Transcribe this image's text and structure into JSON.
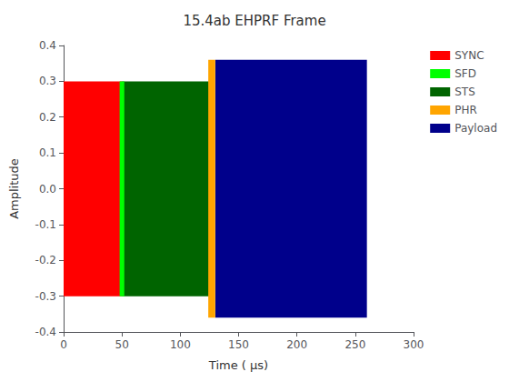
{
  "chart_data": {
    "type": "span",
    "title": "15.4ab EHPRF Frame",
    "xlabel": "Time ( μs)",
    "ylabel": "Amplitude",
    "xlim": [
      0,
      300
    ],
    "ylim": [
      -0.4,
      0.4
    ],
    "xticks": [
      0,
      50,
      100,
      150,
      200,
      250,
      300
    ],
    "yticks": [
      -0.4,
      -0.3,
      -0.2,
      -0.1,
      {
        "value": 0,
        "label": "0.0"
      },
      0.1,
      0.2,
      0.3,
      0.4
    ],
    "series": [
      {
        "name": "SYNC",
        "color": "#FF0000",
        "x0": 0,
        "x1": 50,
        "ylow": -0.3,
        "yhigh": 0.3
      },
      {
        "name": "SFD",
        "color": "#00FF00",
        "x0": 48,
        "x1": 52,
        "ylow": -0.3,
        "yhigh": 0.3
      },
      {
        "name": "STS",
        "color": "#006400",
        "x0": 50,
        "x1": 125,
        "ylow": -0.3,
        "yhigh": 0.3
      },
      {
        "name": "PHR",
        "color": "#FFA500",
        "x0": 124,
        "x1": 130,
        "ylow": -0.36,
        "yhigh": 0.36
      },
      {
        "name": "Payload",
        "color": "#00008B",
        "x0": 130,
        "x1": 260,
        "ylow": -0.36,
        "yhigh": 0.36
      }
    ],
    "grid": false,
    "legend": "upper right"
  }
}
